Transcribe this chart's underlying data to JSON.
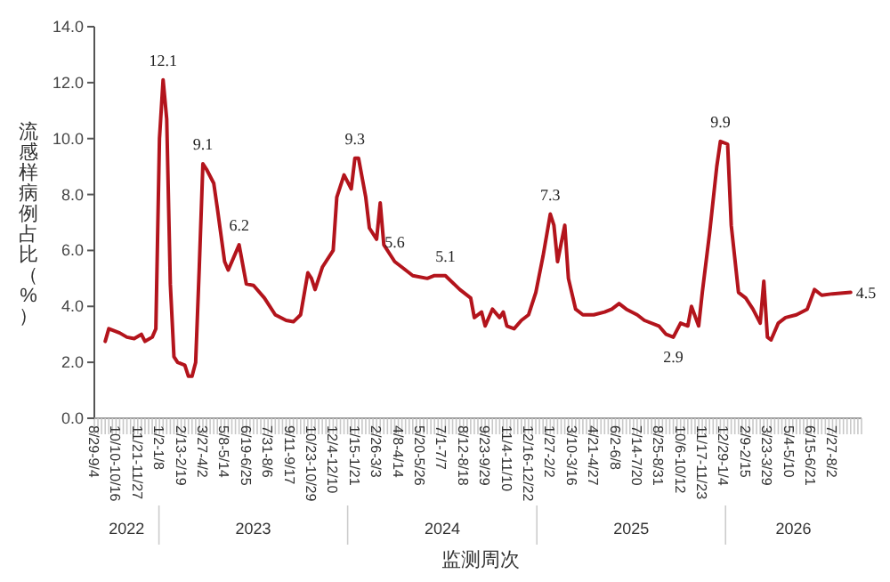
{
  "chart_data": {
    "type": "line",
    "xlabel": "监测周次",
    "ylabel": "流感样病例占比（%）",
    "color": "#b3141c",
    "line_style": "solid",
    "x": [
      "2022-09-19",
      "2022-09-26",
      "2022-10-17",
      "2022-10-31",
      "2022-11-14",
      "2022-11-28",
      "2022-12-05",
      "2022-12-19",
      "2022-12-26",
      "2023-01-02",
      "2023-01-09",
      "2023-01-16",
      "2023-01-23",
      "2023-01-30",
      "2023-02-06",
      "2023-02-20",
      "2023-02-27",
      "2023-03-06",
      "2023-03-13",
      "2023-03-20",
      "2023-03-27",
      "2023-04-03",
      "2023-04-17",
      "2023-04-24",
      "2023-05-08",
      "2023-05-15",
      "2023-06-05",
      "2023-06-19",
      "2023-07-03",
      "2023-07-24",
      "2023-08-14",
      "2023-09-04",
      "2023-09-18",
      "2023-10-02",
      "2023-10-16",
      "2023-10-23",
      "2023-10-30",
      "2023-11-13",
      "2023-12-04",
      "2023-12-11",
      "2023-12-25",
      "2024-01-08",
      "2024-01-15",
      "2024-01-22",
      "2024-02-05",
      "2024-02-12",
      "2024-02-26",
      "2024-03-04",
      "2024-03-11",
      "2024-04-01",
      "2024-04-15",
      "2024-05-06",
      "2024-06-03",
      "2024-06-17",
      "2024-07-08",
      "2024-08-05",
      "2024-08-26",
      "2024-09-02",
      "2024-09-16",
      "2024-09-23",
      "2024-10-07",
      "2024-10-21",
      "2024-10-28",
      "2024-11-04",
      "2024-11-18",
      "2024-12-02",
      "2024-12-16",
      "2024-12-30",
      "2025-01-13",
      "2025-01-27",
      "2025-02-03",
      "2025-02-10",
      "2025-02-24",
      "2025-03-03",
      "2025-03-17",
      "2025-03-31",
      "2025-04-21",
      "2025-05-12",
      "2025-05-26",
      "2025-06-09",
      "2025-06-23",
      "2025-07-14",
      "2025-07-28",
      "2025-08-25",
      "2025-09-08",
      "2025-09-22",
      "2025-10-06",
      "2025-10-20",
      "2025-10-27",
      "2025-11-10",
      "2025-11-17",
      "2025-12-01",
      "2025-12-15",
      "2025-12-22",
      "2026-01-05",
      "2026-01-12",
      "2026-01-26",
      "2026-02-09",
      "2026-02-23",
      "2026-03-09",
      "2026-03-16",
      "2026-03-23",
      "2026-03-30",
      "2026-04-13",
      "2026-04-27",
      "2026-05-18",
      "2026-06-08",
      "2026-06-22",
      "2026-07-06",
      "2026-07-27",
      "2026-08-31"
    ],
    "values": [
      2.75,
      3.2,
      3.05,
      2.9,
      2.85,
      3.0,
      2.75,
      2.9,
      3.2,
      10.0,
      12.1,
      10.7,
      4.8,
      2.2,
      2.0,
      1.9,
      1.5,
      1.5,
      2.0,
      5.4,
      9.1,
      8.9,
      8.4,
      7.5,
      5.6,
      5.3,
      6.2,
      4.8,
      4.75,
      4.3,
      3.7,
      3.5,
      3.45,
      3.7,
      5.2,
      5.0,
      4.6,
      5.4,
      6.0,
      7.9,
      8.7,
      8.2,
      9.3,
      9.3,
      7.9,
      6.8,
      6.4,
      7.7,
      6.2,
      5.6,
      5.4,
      5.1,
      5.0,
      5.1,
      5.1,
      4.6,
      4.3,
      3.6,
      3.8,
      3.3,
      3.9,
      3.6,
      3.8,
      3.3,
      3.2,
      3.5,
      3.7,
      4.5,
      5.8,
      7.3,
      6.9,
      5.6,
      6.9,
      5.0,
      3.9,
      3.7,
      3.7,
      3.8,
      3.9,
      4.1,
      3.9,
      3.7,
      3.5,
      3.3,
      3.0,
      2.9,
      3.4,
      3.3,
      4.0,
      3.3,
      4.5,
      6.6,
      9.0,
      9.9,
      9.8,
      6.9,
      4.5,
      4.3,
      3.9,
      3.4,
      4.9,
      2.9,
      2.8,
      3.4,
      3.6,
      3.7,
      3.9,
      4.6,
      4.4,
      4.45,
      4.5
    ],
    "xlim": [
      "2022-08-29",
      "2026-09-21"
    ],
    "ylim": [
      0,
      14
    ],
    "yticks": [
      {
        "value": 0,
        "label": "0.0"
      },
      {
        "value": 2,
        "label": "2.0"
      },
      {
        "value": 4,
        "label": "4.0"
      },
      {
        "value": 6,
        "label": "6.0"
      },
      {
        "value": 8,
        "label": "8.0"
      },
      {
        "value": 10,
        "label": "10.0"
      },
      {
        "value": 12,
        "label": "12.0"
      },
      {
        "value": 14,
        "label": "14.0"
      }
    ],
    "xticks": [
      {
        "value": "2022-08-29",
        "label": "8/29-9/4"
      },
      {
        "value": "2022-10-10",
        "label": "10/10-10/16"
      },
      {
        "value": "2022-11-21",
        "label": "11/21-11/27"
      },
      {
        "value": "2023-01-02",
        "label": "1/2-1/8"
      },
      {
        "value": "2023-02-13",
        "label": "2/13-2/19"
      },
      {
        "value": "2023-03-27",
        "label": "3/27-4/2"
      },
      {
        "value": "2023-05-08",
        "label": "5/8-5/14"
      },
      {
        "value": "2023-06-19",
        "label": "6/19-6/25"
      },
      {
        "value": "2023-07-31",
        "label": "7/31-8/6"
      },
      {
        "value": "2023-09-11",
        "label": "9/11-9/17"
      },
      {
        "value": "2023-10-23",
        "label": "10/23-10/29"
      },
      {
        "value": "2023-12-04",
        "label": "12/4-12/10"
      },
      {
        "value": "2024-01-15",
        "label": "1/15-1/21"
      },
      {
        "value": "2024-02-26",
        "label": "2/26-3/3"
      },
      {
        "value": "2024-04-08",
        "label": "4/8-4/14"
      },
      {
        "value": "2024-05-20",
        "label": "5/20-5/26"
      },
      {
        "value": "2024-07-01",
        "label": "7/1-7/7"
      },
      {
        "value": "2024-08-12",
        "label": "8/12-8/18"
      },
      {
        "value": "2024-09-23",
        "label": "9/23-9/29"
      },
      {
        "value": "2024-11-04",
        "label": "11/4-11/10"
      },
      {
        "value": "2024-12-16",
        "label": "12/16-12/22"
      },
      {
        "value": "2025-01-27",
        "label": "1/27-2/2"
      },
      {
        "value": "2025-03-10",
        "label": "3/10-3/16"
      },
      {
        "value": "2025-04-21",
        "label": "4/21-4/27"
      },
      {
        "value": "2025-06-02",
        "label": "6/2-6/8"
      },
      {
        "value": "2025-07-14",
        "label": "7/14-7/20"
      },
      {
        "value": "2025-08-25",
        "label": "8/25-8/31"
      },
      {
        "value": "2025-10-06",
        "label": "10/6-10/12"
      },
      {
        "value": "2025-11-17",
        "label": "11/17-11/23"
      },
      {
        "value": "2025-12-29",
        "label": "12/29-1/4"
      },
      {
        "value": "2026-02-09",
        "label": "2/9-2/15"
      },
      {
        "value": "2026-03-23",
        "label": "3/23-3/29"
      },
      {
        "value": "2026-05-04",
        "label": "5/4-5/10"
      },
      {
        "value": "2026-06-15",
        "label": "6/15-6/21"
      },
      {
        "value": "2026-07-27",
        "label": "7/27-8/2"
      }
    ],
    "annotations": [
      {
        "text": "12.1",
        "x": "2023-01-09",
        "y": 12.1
      },
      {
        "text": "9.1",
        "x": "2023-03-27",
        "y": 9.1
      },
      {
        "text": "6.2",
        "x": "2023-06-05",
        "y": 6.2
      },
      {
        "text": "9.3",
        "x": "2024-01-15",
        "y": 9.3
      },
      {
        "text": "5.6",
        "x": "2024-04-01",
        "y": 5.6
      },
      {
        "text": "5.1",
        "x": "2024-07-08",
        "y": 5.1
      },
      {
        "text": "7.3",
        "x": "2025-01-27",
        "y": 7.3
      },
      {
        "text": "2.9",
        "x": "2025-09-22",
        "y": 2.9
      },
      {
        "text": "9.9",
        "x": "2025-12-22",
        "y": 9.9
      },
      {
        "text": "4.5",
        "x": "2026-08-31",
        "y": 4.5
      },
      "2022",
      "2023",
      "2024",
      "2025",
      "2026"
    ]
  }
}
